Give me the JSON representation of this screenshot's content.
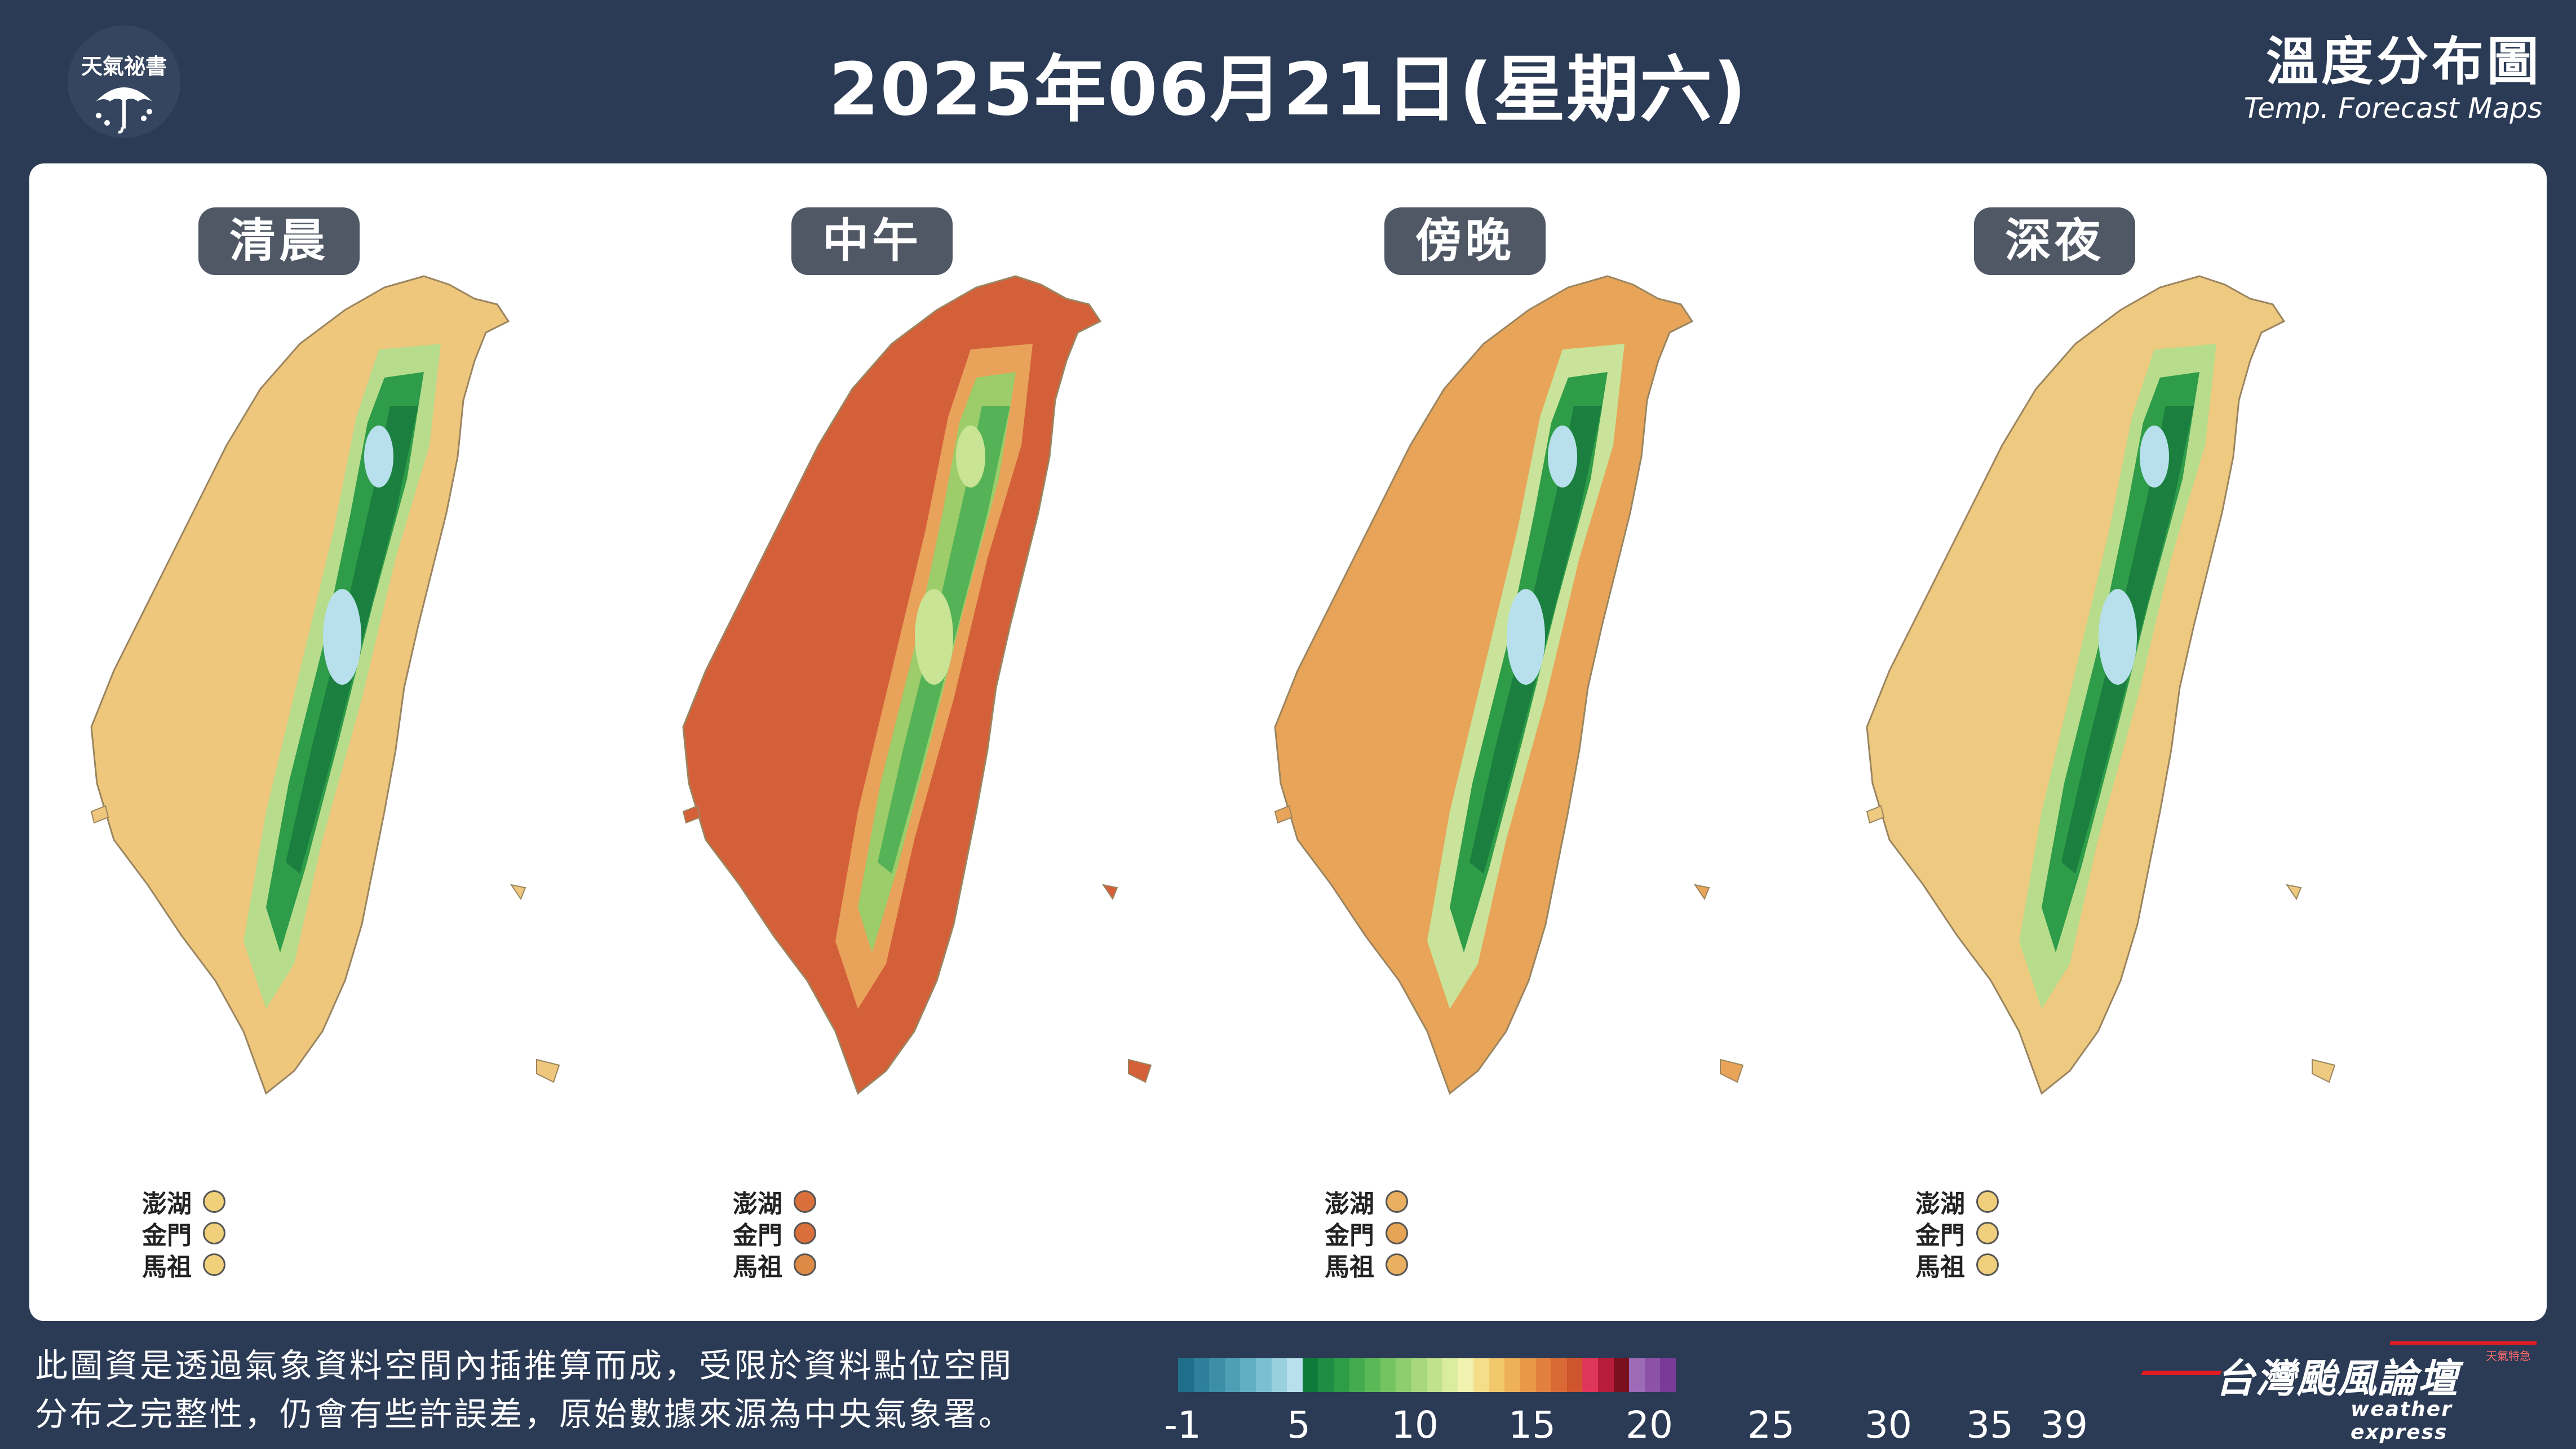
{
  "header": {
    "logo_text": "天氣祕書",
    "title": "2025年06月21日(星期六)",
    "brand_zh": "溫度分布圖",
    "brand_en": "Temp. Forecast Maps"
  },
  "periods": [
    {
      "label": "清晨",
      "scheme": "dawn"
    },
    {
      "label": "中午",
      "scheme": "noon"
    },
    {
      "label": "傍晚",
      "scheme": "dusk"
    },
    {
      "label": "深夜",
      "scheme": "night"
    }
  ],
  "outlying_islands": [
    "澎湖",
    "金門",
    "馬祖"
  ],
  "footer": {
    "note_line1": "此圖資是透過氣象資料空間內插推算而成，受限於資料點位空間",
    "note_line2": "分布之完整性，仍會有些許誤差，原始數據來源為中央氣象署。",
    "scale_ticks": [
      "-1",
      "5",
      "10",
      "15",
      "20",
      "25",
      "30",
      "35",
      "39"
    ],
    "brand_zh": "台灣颱風論壇",
    "brand_en": "weather express",
    "brand_tag": "天氣特急"
  },
  "colors": {
    "background": "#2b3a55",
    "panel": "#ffffff",
    "pill": "#505866",
    "scale": [
      "#1f6f8b",
      "#2e7f99",
      "#3d8fa8",
      "#4e9fb6",
      "#62afc4",
      "#7bc0d2",
      "#99d0e0",
      "#b8e0ec",
      "#0f7a3a",
      "#1e8c42",
      "#2f9c48",
      "#44ac4f",
      "#5bb857",
      "#75c462",
      "#8fce6e",
      "#a8d87d",
      "#c1e28d",
      "#daeca0",
      "#f2f2b0",
      "#f4de8a",
      "#f2c86c",
      "#eeb058",
      "#e9984a",
      "#e2803f",
      "#d96a36",
      "#cf552e",
      "#e0355a",
      "#b71c3a",
      "#7a0f1e",
      "#9d6bb8",
      "#8b52a8",
      "#7a3b98"
    ]
  }
}
